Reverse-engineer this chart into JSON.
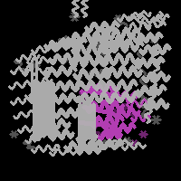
{
  "background_color": "#000000",
  "protein_color_r": 170,
  "protein_color_g": 170,
  "protein_color_b": 170,
  "domain_color_r": 180,
  "domain_color_g": 60,
  "domain_color_b": 180,
  "figsize": [
    2.0,
    2.0
  ],
  "dpi": 100,
  "image_size": 200
}
